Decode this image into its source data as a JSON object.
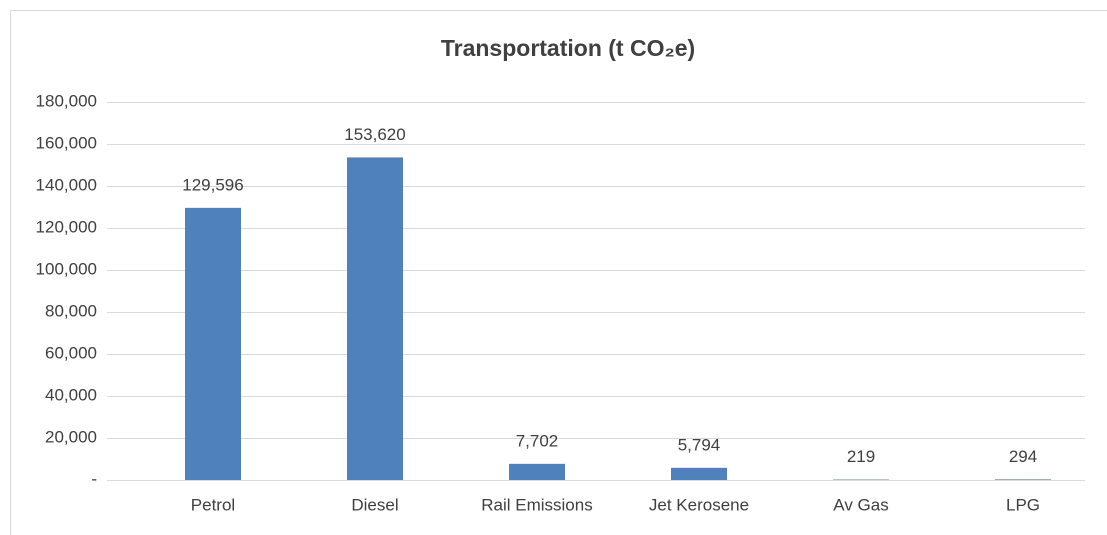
{
  "chart_data": {
    "type": "bar",
    "title": "Transportation (t CO₂e)",
    "categories": [
      "Petrol",
      "Diesel",
      "Rail Emissions",
      "Jet Kerosene",
      "Av Gas",
      "LPG"
    ],
    "values": [
      129596,
      153620,
      7702,
      5794,
      219,
      294
    ],
    "value_labels": [
      "129,596",
      "153,620",
      "7,702",
      "5,794",
      "219",
      "294"
    ],
    "color": "#4f81bd",
    "ylim": [
      0,
      180000
    ],
    "yticks": [
      {
        "value": 0,
        "label": "-"
      },
      {
        "value": 20000,
        "label": "20,000"
      },
      {
        "value": 40000,
        "label": "40,000"
      },
      {
        "value": 60000,
        "label": "60,000"
      },
      {
        "value": 80000,
        "label": "80,000"
      },
      {
        "value": 100000,
        "label": "100,000"
      },
      {
        "value": 120000,
        "label": "120,000"
      },
      {
        "value": 140000,
        "label": "140,000"
      },
      {
        "value": 160000,
        "label": "160,000"
      },
      {
        "value": 180000,
        "label": "180,000"
      }
    ],
    "grid": true
  }
}
